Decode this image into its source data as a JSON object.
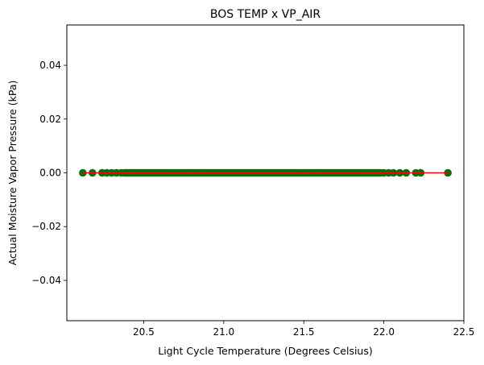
{
  "chart_data": {
    "type": "scatter",
    "title": "BOS TEMP x VP_AIR",
    "xlabel": "Light Cycle Temperature (Degrees Celsius)",
    "ylabel": "Actual Moisture Vapor Pressure (kPa)",
    "xlim": [
      20.02,
      22.5
    ],
    "ylim": [
      -0.055,
      0.055
    ],
    "x_ticks": [
      20.5,
      21.0,
      21.5,
      22.0,
      22.5
    ],
    "x_tick_labels": [
      "20.5",
      "21.0",
      "21.5",
      "22.0",
      "22.5"
    ],
    "y_ticks": [
      -0.04,
      -0.02,
      0.0,
      0.02,
      0.04
    ],
    "y_tick_labels": [
      "−0.04",
      "−0.02",
      "0.00",
      "0.02",
      "0.04"
    ],
    "grid": false,
    "marker_color": "#0b6e0b",
    "line_color": "#ff0000",
    "scatter": {
      "x_dense_range": [
        20.38,
        21.98
      ],
      "y": 0.0,
      "x_extra": [
        20.12,
        20.18,
        20.24,
        20.27,
        20.3,
        20.33,
        20.36,
        22.0,
        22.03,
        22.06,
        22.1,
        22.14,
        22.2,
        22.23,
        22.4
      ]
    },
    "regression_line": {
      "x": [
        20.12,
        22.4
      ],
      "y": [
        0.0,
        0.0
      ]
    }
  }
}
